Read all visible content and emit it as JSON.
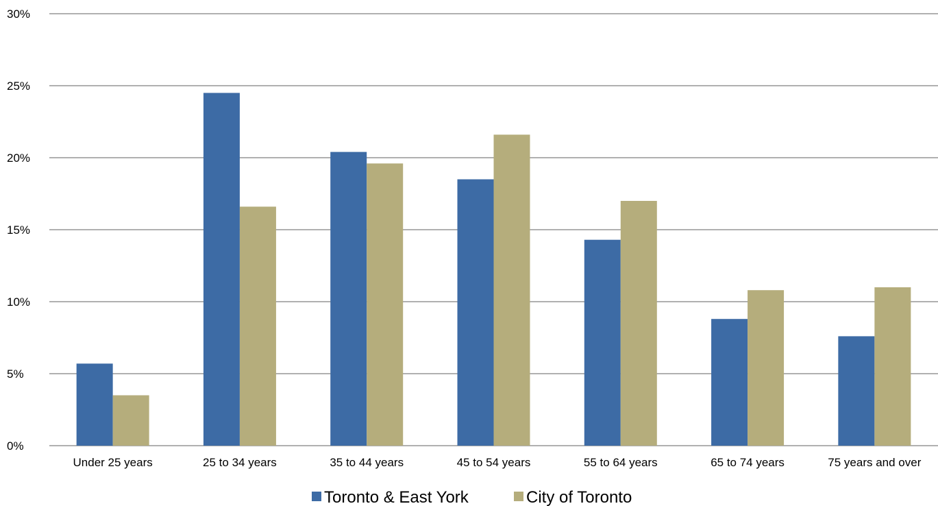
{
  "chart_data": {
    "type": "bar",
    "title": "",
    "xlabel": "",
    "ylabel": "",
    "categories": [
      "Under 25 years",
      "25 to 34 years",
      "35 to 44 years",
      "45 to 54 years",
      "55 to 64 years",
      "65 to 74 years",
      "75 years and over"
    ],
    "series": [
      {
        "name": "Toronto & East York",
        "color": "#3D6BA5",
        "values": [
          5.7,
          24.5,
          20.4,
          18.5,
          14.3,
          8.8,
          7.6
        ]
      },
      {
        "name": "City of Toronto",
        "color": "#B5AD7C",
        "values": [
          3.5,
          16.6,
          19.6,
          21.6,
          17.0,
          10.8,
          11.0
        ]
      }
    ],
    "ylim": [
      0,
      30
    ],
    "yticks": [
      0,
      5,
      10,
      15,
      20,
      25,
      30
    ],
    "ytick_labels": [
      "0%",
      "5%",
      "10%",
      "15%",
      "20%",
      "25%",
      "30%"
    ],
    "grid": true,
    "gridline_color": "#808080",
    "legend_position": "bottom"
  }
}
